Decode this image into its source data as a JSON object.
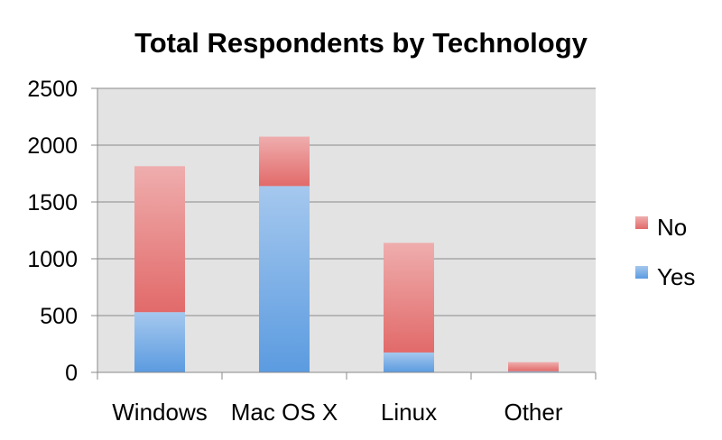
{
  "chart_data": {
    "type": "bar",
    "stacked": true,
    "title": "Total Respondents by Technology",
    "categories": [
      "Windows",
      "Mac OS X",
      "Linux",
      "Other"
    ],
    "series": [
      {
        "name": "Yes",
        "values": [
          530,
          1640,
          175,
          10
        ],
        "color": "#5b9be0"
      },
      {
        "name": "No",
        "values": [
          1285,
          435,
          965,
          80
        ],
        "color": "#e26a6a"
      }
    ],
    "y_ticks": [
      "0",
      "500",
      "1000",
      "1500",
      "2000",
      "2500"
    ],
    "ylim": [
      0,
      2500
    ],
    "grid": true,
    "legend_position": "right",
    "legend_order": [
      "No",
      "Yes"
    ],
    "plot_background": "#e3e3e3"
  }
}
